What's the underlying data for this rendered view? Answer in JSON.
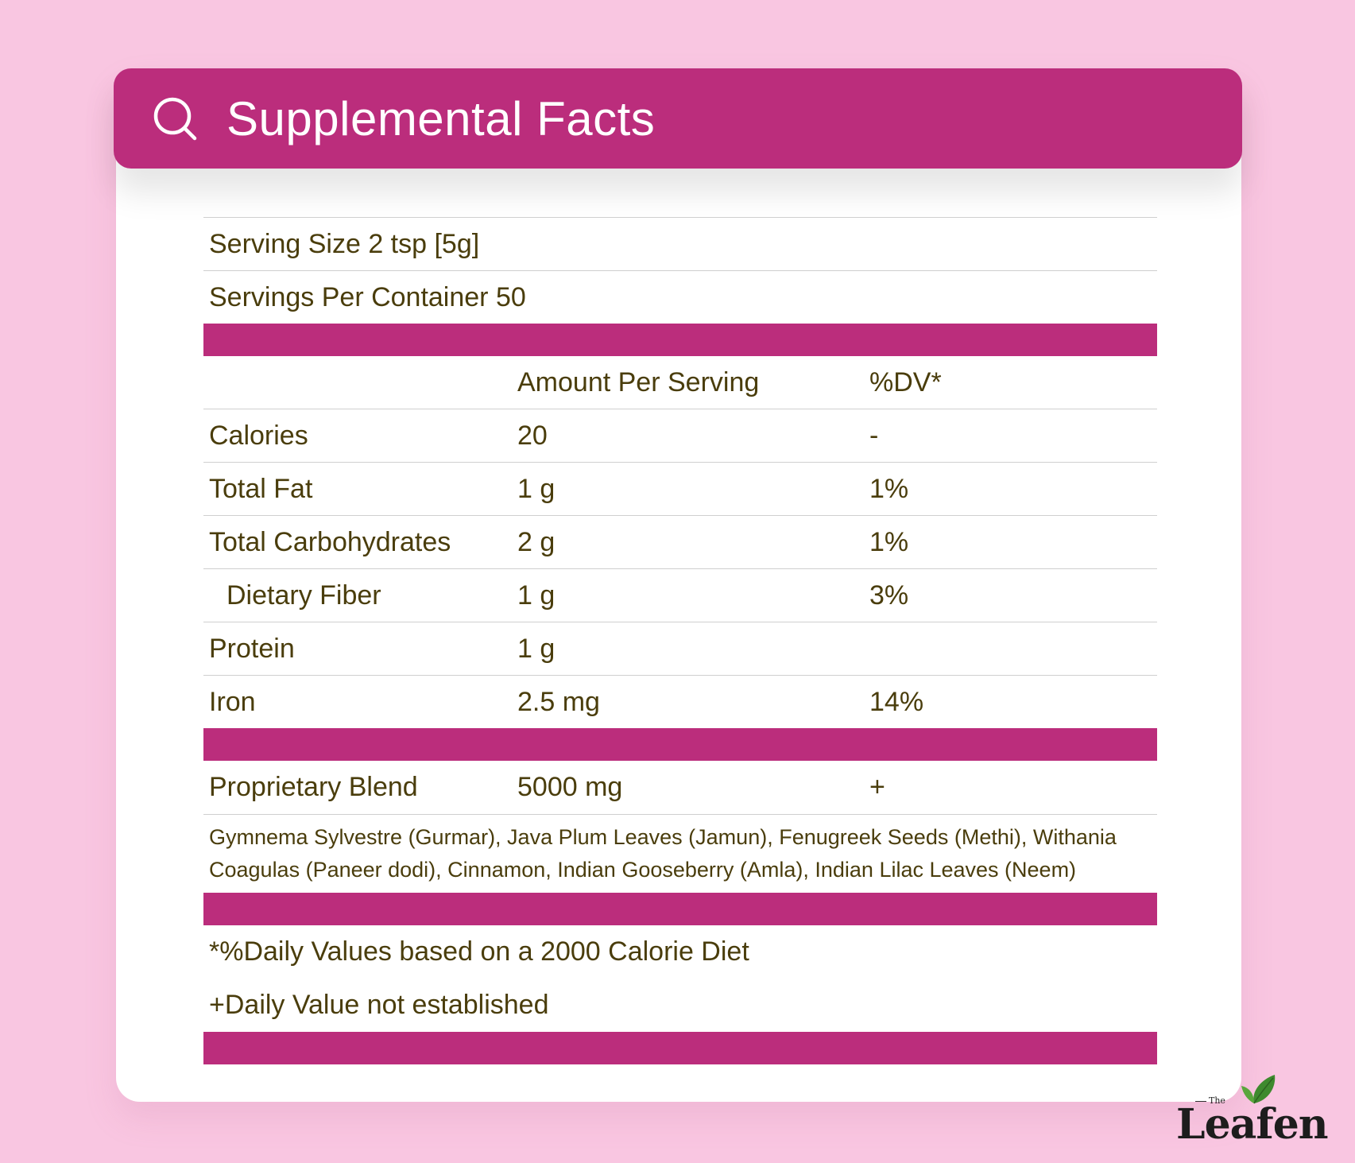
{
  "header": {
    "title": "Supplemental Facts",
    "icon": "search-icon"
  },
  "serving": {
    "size": "Serving Size 2 tsp [5g]",
    "per_container": "Servings Per Container 50"
  },
  "columns": {
    "amount": "Amount Per Serving",
    "dv": "%DV*"
  },
  "nutrients": [
    {
      "name": "Calories",
      "amount": "20",
      "dv": "-"
    },
    {
      "name": "Total Fat",
      "amount": "1 g",
      "dv": "1%"
    },
    {
      "name": "Total Carbohydrates",
      "amount": "2 g",
      "dv": "1%"
    },
    {
      "name": "Dietary Fiber",
      "amount": "1 g",
      "dv": "3%"
    },
    {
      "name": "Protein",
      "amount": "1 g",
      "dv": ""
    },
    {
      "name": "Iron",
      "amount": "2.5 mg",
      "dv": "14%"
    }
  ],
  "blend": {
    "name": "Proprietary Blend",
    "amount": "5000 mg",
    "dv": "+",
    "ingredients": "Gymnema Sylvestre (Gurmar), Java Plum Leaves (Jamun), Fenugreek Seeds (Methi), Withania Coagulas (Paneer dodi), Cinnamon, Indian Gooseberry (Amla), Indian Lilac Leaves (Neem)"
  },
  "footnotes": {
    "daily_values": "*%Daily Values based on a 2000 Calorie Diet",
    "not_established": "+Daily Value not established"
  },
  "logo": {
    "small": "The",
    "word": "Leafen"
  },
  "colors": {
    "accent": "#bb2d7c",
    "background": "#f9c6e1",
    "text": "#4a3d0c"
  }
}
